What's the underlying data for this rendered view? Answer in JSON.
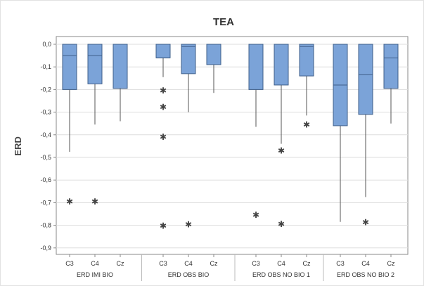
{
  "chart_data": {
    "type": "box",
    "title": "TEA",
    "ylabel": "ERD",
    "ylim": [
      -0.9,
      0.0
    ],
    "yticks": [
      0.0,
      -0.1,
      -0.2,
      -0.3,
      -0.4,
      -0.5,
      -0.6,
      -0.7,
      -0.8,
      -0.9
    ],
    "ytick_labels": [
      "0,0",
      "-0,1",
      "-0,2",
      "-0,3",
      "-0,4",
      "-0,5",
      "-0,6",
      "-0,7",
      "-0,8",
      "-0,9"
    ],
    "colors": {
      "box_fill": "#7BA3D8",
      "box_edge": "#3f5f8a",
      "whisker": "#555555",
      "outlier": "#444444",
      "grid": "#dddddd"
    },
    "groups": [
      {
        "name": "ERD IMI BIO",
        "boxes": [
          {
            "channel": "C3",
            "q1": -0.2,
            "median": -0.05,
            "q3": 0.0,
            "whisker_low": -0.475,
            "whisker_high": 0.0,
            "outliers": [
              -0.695
            ]
          },
          {
            "channel": "C4",
            "q1": -0.175,
            "median": -0.05,
            "q3": 0.0,
            "whisker_low": -0.355,
            "whisker_high": 0.0,
            "outliers": [
              -0.695
            ]
          },
          {
            "channel": "Cz",
            "q1": -0.195,
            "median": 0.0,
            "q3": 0.0,
            "whisker_low": -0.34,
            "whisker_high": 0.0,
            "outliers": []
          }
        ]
      },
      {
        "name": "ERD OBS BIO",
        "boxes": [
          {
            "channel": "C3",
            "q1": -0.06,
            "median": -0.06,
            "q3": 0.0,
            "whisker_low": -0.145,
            "whisker_high": 0.0,
            "outliers": [
              -0.205,
              -0.278,
              -0.41,
              -0.803
            ]
          },
          {
            "channel": "C4",
            "q1": -0.13,
            "median": -0.01,
            "q3": 0.0,
            "whisker_low": -0.3,
            "whisker_high": 0.0,
            "outliers": [
              -0.797
            ]
          },
          {
            "channel": "Cz",
            "q1": -0.09,
            "median": 0.0,
            "q3": 0.0,
            "whisker_low": -0.215,
            "whisker_high": 0.0,
            "outliers": []
          }
        ]
      },
      {
        "name": "ERD OBS NO BIO 1",
        "boxes": [
          {
            "channel": "C3",
            "q1": -0.2,
            "median": 0.0,
            "q3": 0.0,
            "whisker_low": -0.365,
            "whisker_high": 0.0,
            "outliers": [
              -0.755
            ]
          },
          {
            "channel": "C4",
            "q1": -0.18,
            "median": 0.0,
            "q3": 0.0,
            "whisker_low": -0.44,
            "whisker_high": 0.0,
            "outliers": [
              -0.47,
              -0.795
            ]
          },
          {
            "channel": "Cz",
            "q1": -0.14,
            "median": -0.01,
            "q3": 0.0,
            "whisker_low": -0.315,
            "whisker_high": 0.0,
            "outliers": [
              -0.356
            ]
          }
        ]
      },
      {
        "name": "ERD OBS NO BIO 2",
        "boxes": [
          {
            "channel": "C3",
            "q1": -0.36,
            "median": -0.18,
            "q3": 0.0,
            "whisker_low": -0.785,
            "whisker_high": 0.0,
            "outliers": []
          },
          {
            "channel": "C4",
            "q1": -0.31,
            "median": -0.135,
            "q3": 0.0,
            "whisker_low": -0.675,
            "whisker_high": 0.0,
            "outliers": [
              -0.788
            ]
          },
          {
            "channel": "Cz",
            "q1": -0.195,
            "median": -0.06,
            "q3": 0.0,
            "whisker_low": -0.35,
            "whisker_high": 0.0,
            "outliers": []
          }
        ]
      }
    ]
  }
}
